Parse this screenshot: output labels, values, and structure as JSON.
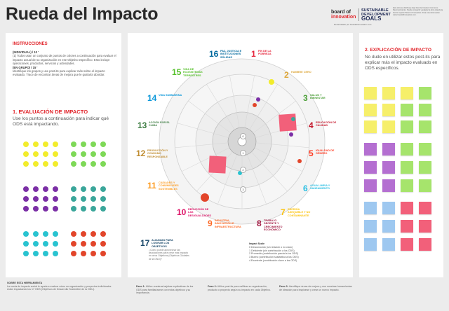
{
  "header": {
    "title": "Rueda del Impacto",
    "logo_board_line1": "board of",
    "logo_board_line2": "innovation",
    "logo_sdg_line1": "SUSTAINABLE",
    "logo_sdg_line2": "DEVELOPMENT",
    "logo_sdg_line3": "GOALS",
    "logo_sub": "Desarrollado por boardofinnovation.com",
    "blurb": "Esta obra se distribuye bajo licencia Creative Commons Reconocimiento. Puede compartir y adaptar la obra citando la fuente original. Board of Innovation. Para más información visite boardofinnovation.com."
  },
  "instructions": {
    "heading": "INSTRUCCIONES",
    "individual_label": "(INDIVIDUAL) / 10 '",
    "individual_text": "(1) Todos usan un conjunto de puntos de colores a continuación para evaluar el impacto actual de su organización en ese Objetivo específico. Esto incluye operaciones, productos, servicios y actividades.",
    "group_label": "(EN GRUPO) / 15 '",
    "group_text": "Identifique los grupos y use post-its para explicar más sobre el impacto evaluado. Trace de encontrar áreas de mejora que le gustaría abordar."
  },
  "evaluation": {
    "heading": "1. EVALUACIÓN DE IMPACTO",
    "text": "Use los puntos a continuación para indicar qué ODS está impactando."
  },
  "explanation": {
    "heading": "2. EXPLICACIÓN DE IMPACTO",
    "text": "No dude en utilizar estos post-its para explicar más el impacto evaluado en ODS específicos."
  },
  "sdgs": [
    {
      "num": "1",
      "label": "FIN DE LA POBREZA",
      "color": "#e5243b"
    },
    {
      "num": "2",
      "label": "HAMBRE CERO",
      "color": "#dda63a"
    },
    {
      "num": "3",
      "label": "SALUD Y BIENESTAR",
      "color": "#4c9f38"
    },
    {
      "num": "4",
      "label": "EDUCACIÓN DE CALIDAD",
      "color": "#c5192d"
    },
    {
      "num": "5",
      "label": "IGUALDAD DE GÉNERO",
      "color": "#ff3a21"
    },
    {
      "num": "6",
      "label": "AGUA LIMPIA Y SANEAMIENTO",
      "color": "#26bde2"
    },
    {
      "num": "7",
      "label": "ENERGÍA ASEQUIBLE Y NO CONTAMINANTE",
      "color": "#fcc30b"
    },
    {
      "num": "8",
      "label": "TRABAJO DECENTE Y CRECIMIENTO ECONÓMICO",
      "color": "#a21942"
    },
    {
      "num": "9",
      "label": "INDUSTRIA, INNOVACIÓN E INFRAESTRUCTURA",
      "color": "#fd6925"
    },
    {
      "num": "10",
      "label": "REDUCCIÓN DE LAS DESIGUALDADES",
      "color": "#dd1367"
    },
    {
      "num": "11",
      "label": "CIUDADES Y COMUNIDADES SOSTENIBLES",
      "color": "#fd9d24"
    },
    {
      "num": "12",
      "label": "PRODUCCIÓN Y CONSUMO RESPONSABLE",
      "color": "#bf8b2e"
    },
    {
      "num": "13",
      "label": "ACCIÓN POR EL CLIMA",
      "color": "#3f7e44"
    },
    {
      "num": "14",
      "label": "VIDA SUBMARINA",
      "color": "#0a97d9"
    },
    {
      "num": "15",
      "label": "VIDA DE ECOSISTEMAS TERRESTRES",
      "color": "#56c02b"
    },
    {
      "num": "16",
      "label": "PAZ, JUSTICIA E INSTITUCIONES SÓLIDAS",
      "color": "#00689d"
    },
    {
      "num": "17",
      "label": "ALIANZAS PARA LOGRAR LOS OBJETIVOS",
      "color": "#19486a"
    }
  ],
  "sdg17_sub": "¿Cómo puede aprovechar las asociaciones para crear más impacto en otros Objetivos (Objetivos Globales de la ONU)?",
  "ring_labels": [
    "0",
    "1",
    "2",
    "3"
  ],
  "impact_scale": {
    "heading": "Impact Scale",
    "items": [
      "0 Desconocido (sin relación o no claro)",
      "1 Deficiente (sin contribución a los ODS)",
      "2 Promedio (contribución parcial a los ODS)",
      "3 Bueno (contribución sustantiva a los ODS)",
      "4 Excelente (contribución clave a los ODS)"
    ]
  },
  "footer": {
    "about_heading": "SOBRE ESTA HERRAMIENTA",
    "about_text": "La rueda de impacto social le ayuda a evaluar cómo su organización y proyectos individuales están impactando los 17 ODS (Objetivos de Desarrollo Sostenible de la ONU).",
    "step1_label": "Paso 1:",
    "step1_text": "Utilice nuestras tarjetas explicativas de los ODS para familiarizarse con estos objetivos y su importancia.",
    "step2_label": "Paso 2:",
    "step2_text": "Utilice post-its para calificar su organización, producto o proyecto según su impacto en cada Objetivo.",
    "step3_label": "Paso 3:",
    "step3_text": "Identifique áreas de mejora y use nuestras herramientas de ideación para inspirarse y crear un nuevo impacto."
  },
  "colors": {
    "accent": "#e1242a",
    "dot_yellow": "#f2ec2c",
    "dot_green": "#7ed957",
    "dot_purple": "#7b2fa6",
    "dot_teal": "#3aa69a",
    "dot_cyan": "#29c3d0",
    "dot_red": "#e2452a",
    "note_yellow": "#f6ef6a",
    "note_green": "#a6e46c",
    "note_purple": "#b46fd1",
    "note_blue": "#9ec8f0",
    "note_pink": "#f2607a"
  }
}
